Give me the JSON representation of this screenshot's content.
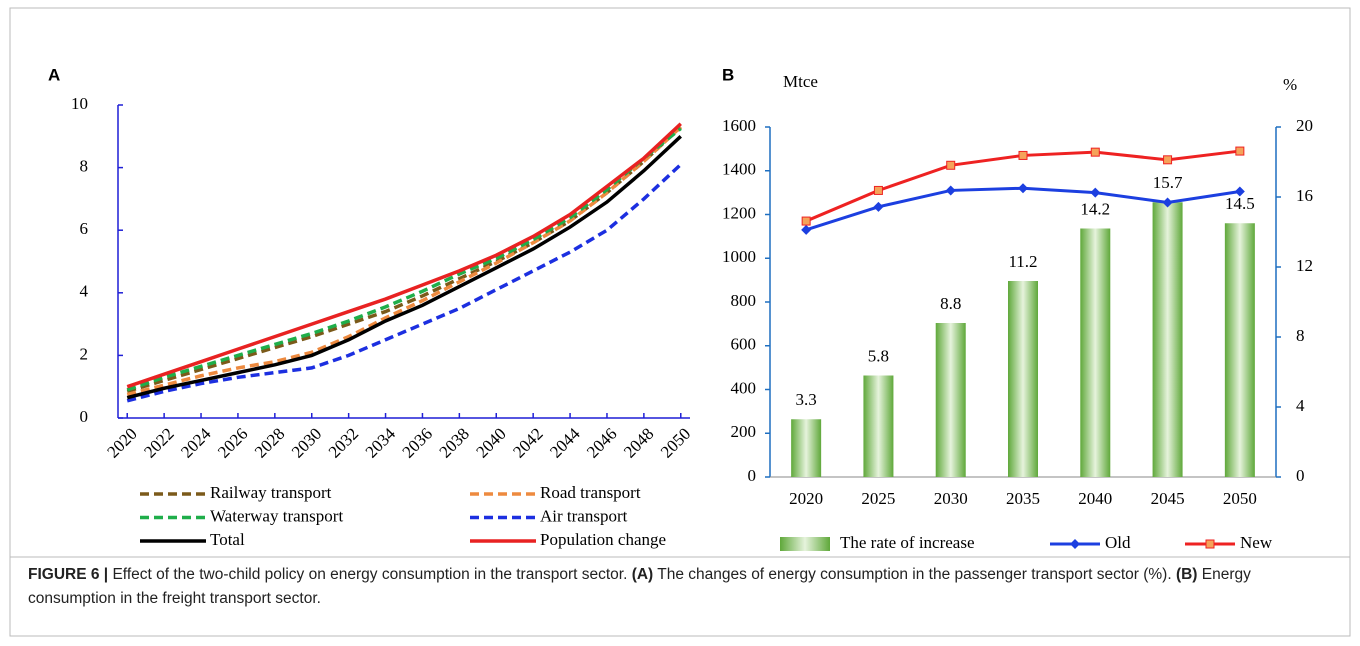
{
  "chart_data": [
    {
      "type": "line",
      "panel_label": "A",
      "x": [
        2020,
        2022,
        2024,
        2026,
        2028,
        2030,
        2032,
        2034,
        2036,
        2038,
        2040,
        2042,
        2044,
        2046,
        2048,
        2050
      ],
      "xlim": [
        2019.5,
        2050.5
      ],
      "xticks": [
        2020,
        2022,
        2024,
        2026,
        2028,
        2030,
        2032,
        2034,
        2036,
        2038,
        2040,
        2042,
        2044,
        2046,
        2048,
        2050
      ],
      "ylim": [
        0,
        10
      ],
      "yticks": [
        0,
        2,
        4,
        6,
        8,
        10
      ],
      "axis_color": "#1f1fd6",
      "series": [
        {
          "name": "Railway transport",
          "color": "#7b5a1a",
          "style": "dashed",
          "values": [
            0.85,
            1.2,
            1.55,
            1.9,
            2.25,
            2.6,
            3.0,
            3.4,
            3.9,
            4.45,
            5.0,
            5.6,
            6.3,
            7.2,
            8.2,
            9.3
          ]
        },
        {
          "name": "Road transport",
          "color": "#ed8a3f",
          "style": "dashed",
          "values": [
            0.75,
            1.05,
            1.35,
            1.6,
            1.8,
            2.1,
            2.6,
            3.2,
            3.75,
            4.35,
            4.95,
            5.6,
            6.3,
            7.2,
            8.2,
            9.3
          ]
        },
        {
          "name": "Waterway transport",
          "color": "#1fae4a",
          "style": "dashed",
          "values": [
            0.9,
            1.3,
            1.65,
            2.0,
            2.35,
            2.7,
            3.1,
            3.55,
            4.05,
            4.6,
            5.1,
            5.7,
            6.4,
            7.3,
            8.3,
            9.25
          ]
        },
        {
          "name": "Air transport",
          "color": "#1c2fe0",
          "style": "dashed",
          "values": [
            0.55,
            0.85,
            1.1,
            1.3,
            1.45,
            1.6,
            2.0,
            2.5,
            3.0,
            3.5,
            4.1,
            4.7,
            5.3,
            6.0,
            7.0,
            8.1
          ]
        },
        {
          "name": "Total",
          "color": "#000000",
          "style": "solid",
          "values": [
            0.65,
            0.95,
            1.2,
            1.45,
            1.7,
            2.0,
            2.5,
            3.1,
            3.6,
            4.2,
            4.8,
            5.4,
            6.1,
            6.9,
            7.9,
            9.0
          ]
        },
        {
          "name": "Population change",
          "color": "#e82222",
          "style": "solid",
          "values": [
            1.0,
            1.4,
            1.8,
            2.2,
            2.6,
            3.0,
            3.4,
            3.8,
            4.25,
            4.7,
            5.2,
            5.8,
            6.5,
            7.4,
            8.3,
            9.4
          ]
        }
      ]
    },
    {
      "type": "bar_line",
      "panel_label": "B",
      "y_label": "Mtce",
      "y2_label": "%",
      "categories": [
        "2020",
        "2025",
        "2030",
        "2035",
        "2040",
        "2045",
        "2050"
      ],
      "ylim": [
        0,
        1600
      ],
      "yticks": [
        0,
        200,
        400,
        600,
        800,
        1000,
        1200,
        1400,
        1600
      ],
      "y2lim": [
        0,
        20
      ],
      "y2ticks": [
        0,
        4,
        8,
        12,
        16,
        20
      ],
      "axis_color": "#1f6fc0",
      "series": [
        {
          "name": "The rate of increase",
          "type": "bar",
          "axis": "y2",
          "color": "#8cc46a",
          "values": [
            3.3,
            5.8,
            8.8,
            11.2,
            14.2,
            15.7,
            14.5
          ]
        },
        {
          "name": "Old",
          "type": "line",
          "marker": "diamond",
          "color": "#1c3fe0",
          "values": [
            1130,
            1235,
            1310,
            1320,
            1300,
            1255,
            1305
          ]
        },
        {
          "name": "New",
          "type": "line",
          "marker": "square",
          "color": "#ee2222",
          "values": [
            1170,
            1310,
            1425,
            1470,
            1485,
            1450,
            1490
          ]
        }
      ]
    }
  ],
  "caption": {
    "label": "FIGURE 6 |",
    "text1": "Effect of the two-child policy on energy consumption in the transport sector.",
    "a": "(A)",
    "text2": "The changes of energy consumption in the passenger transport sector (%).",
    "b": "(B)",
    "text3": "Energy consumption in the freight transport sector."
  }
}
